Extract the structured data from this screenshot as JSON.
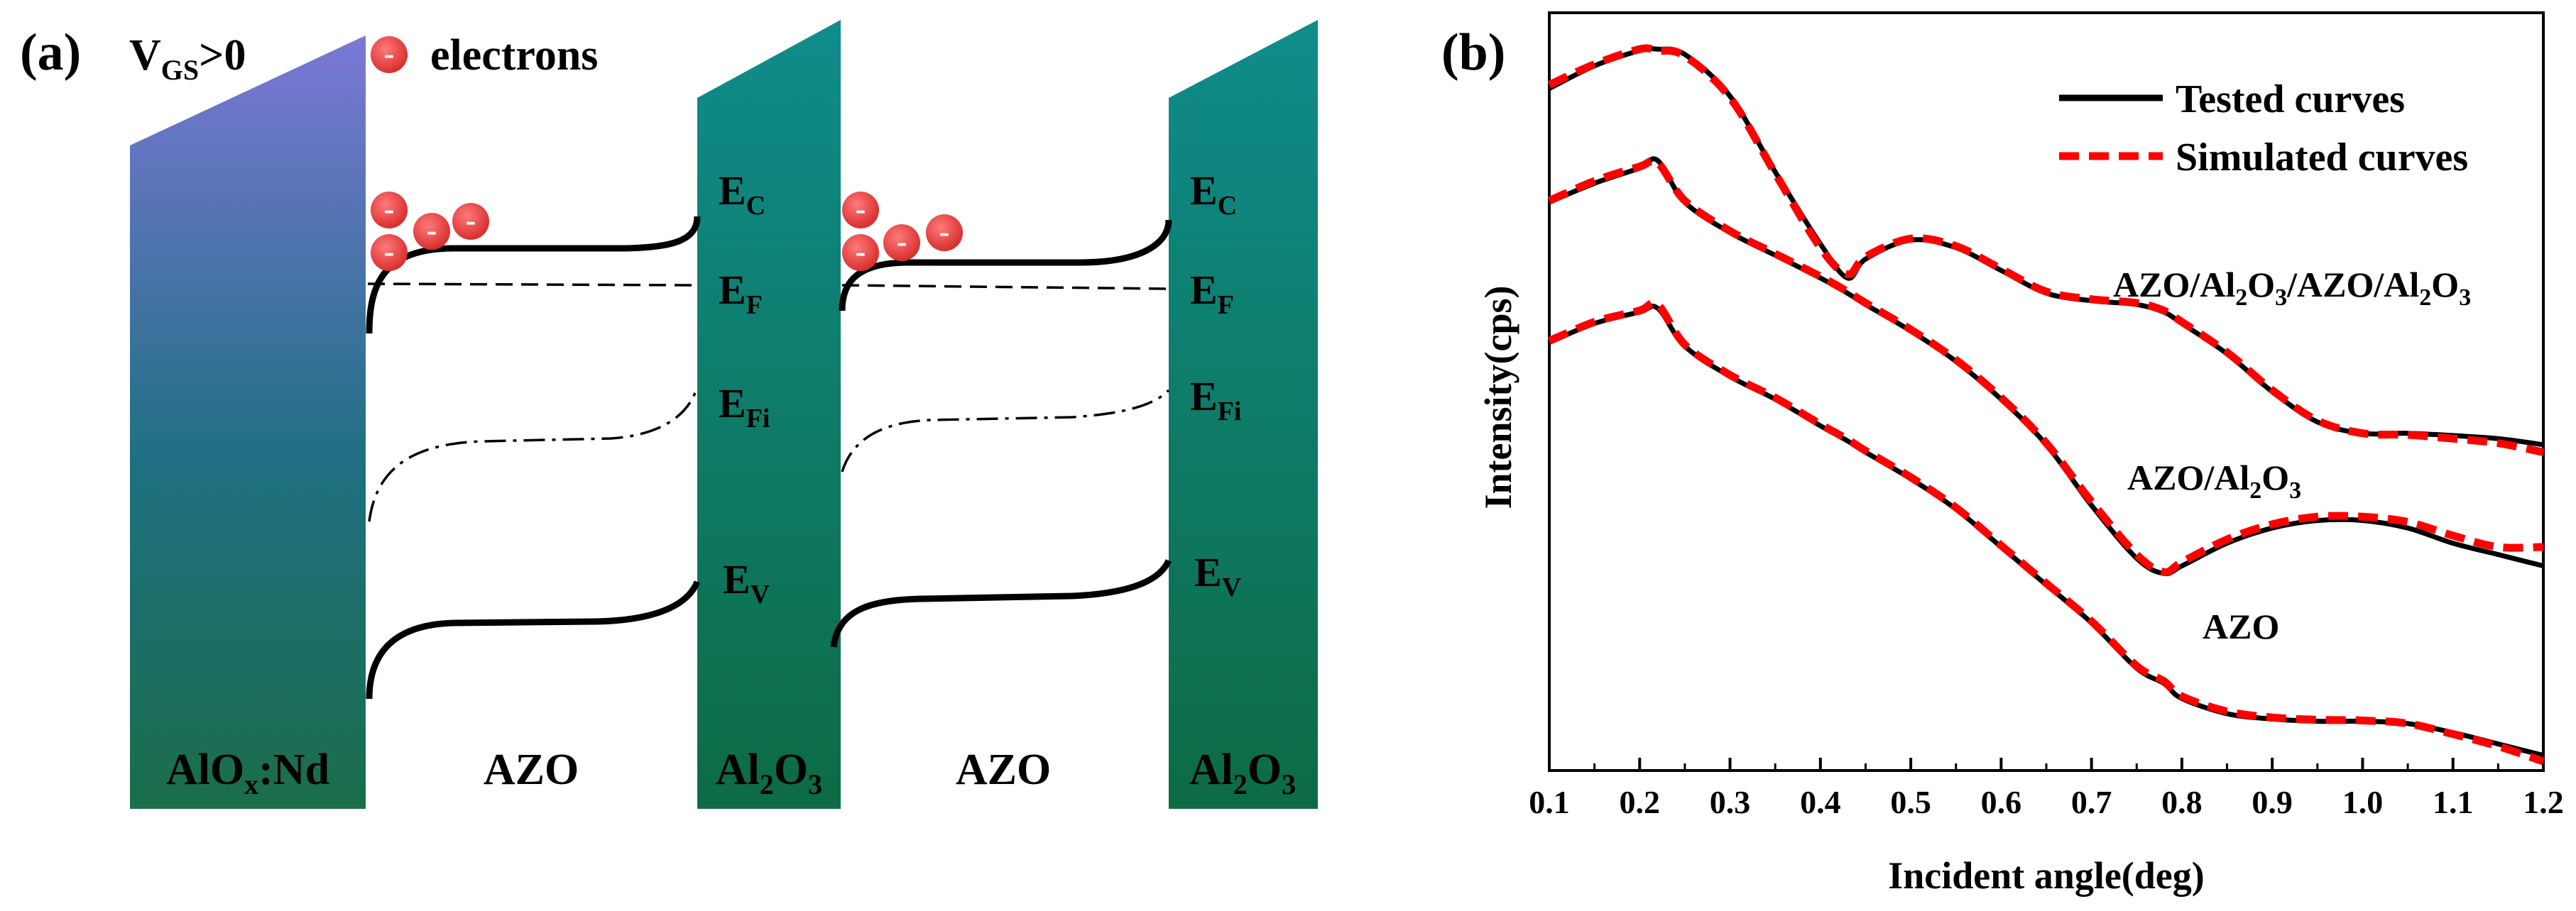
{
  "panel_a": {
    "label": "(a)",
    "bias": {
      "main": "V",
      "sub": "GS",
      "rest": ">0"
    },
    "legend_label": "electrons",
    "electron_symbol": "-",
    "layers": [
      {
        "main": "AlO",
        "sub": "x",
        "rest": ":Nd"
      },
      {
        "main": "AZO",
        "sub": "",
        "rest": ""
      },
      {
        "main": "Al",
        "sub": "2",
        "main2": "O",
        "sub2": "3"
      },
      {
        "main": "AZO",
        "sub": "",
        "rest": ""
      },
      {
        "main": "Al",
        "sub": "2",
        "main2": "O",
        "sub2": "3"
      }
    ],
    "levels": [
      {
        "main": "E",
        "sub": "C"
      },
      {
        "main": "E",
        "sub": "F"
      },
      {
        "main": "E",
        "sub": "Fi"
      },
      {
        "main": "E",
        "sub": "V"
      }
    ],
    "colors": {
      "gate_top": "#7b78d6",
      "gate_bottom": "#1a6e4a",
      "barrier_top": "#0f8c8c",
      "barrier_bottom": "#0d6b45",
      "electron": "#e33b3b"
    }
  },
  "panel_b": {
    "label": "(b)",
    "legend": {
      "tested": "Tested curves",
      "simulated": "Simulated curves"
    },
    "curve_labels": {
      "top": {
        "p1": "AZO/Al",
        "s1": "2",
        "p2": "O",
        "s2": "3",
        "p3": "/AZO/Al",
        "s3": "2",
        "p4": "O",
        "s4": "3"
      },
      "middle": {
        "p1": "AZO/Al",
        "s1": "2",
        "p2": "O",
        "s2": "3"
      },
      "bottom": {
        "p1": "AZO"
      }
    },
    "colors": {
      "tested": "#000000",
      "simulated": "#ff0000"
    }
  },
  "chart_data": {
    "type": "line",
    "title": "",
    "xlabel": "Incident angle(deg)",
    "ylabel": "Intensity(cps)",
    "xlim": [
      0.1,
      1.2
    ],
    "ylim": [
      0,
      10
    ],
    "y_ticks_shown": false,
    "x_ticks": [
      0.1,
      0.2,
      0.3,
      0.4,
      0.5,
      0.6,
      0.7,
      0.8,
      0.9,
      1.0,
      1.1,
      1.2
    ],
    "x_tick_labels": [
      "0.1",
      "0.2",
      "0.3",
      "0.4",
      "0.5",
      "0.6",
      "0.7",
      "0.8",
      "0.9",
      "1.0",
      "1.1",
      "1.2"
    ],
    "x": [
      0.1,
      0.15,
      0.2,
      0.22,
      0.25,
      0.3,
      0.35,
      0.4,
      0.43,
      0.45,
      0.5,
      0.55,
      0.6,
      0.65,
      0.7,
      0.75,
      0.78,
      0.8,
      0.85,
      0.9,
      0.95,
      1.0,
      1.05,
      1.1,
      1.15,
      1.2
    ],
    "series": [
      {
        "name": "AZO/Al2O3/AZO/Al2O3 (tested)",
        "legend": "Tested curves",
        "style": "solid",
        "values": [
          9.0,
          9.3,
          9.5,
          9.52,
          9.45,
          8.9,
          7.9,
          6.95,
          6.5,
          6.75,
          7.0,
          6.9,
          6.6,
          6.3,
          6.2,
          6.15,
          6.05,
          5.9,
          5.5,
          5.0,
          4.6,
          4.45,
          4.45,
          4.42,
          4.38,
          4.3
        ]
      },
      {
        "name": "AZO/Al2O3/AZO/Al2O3 (simulated)",
        "legend": "Simulated curves",
        "style": "dashed",
        "values": [
          9.05,
          9.32,
          9.52,
          9.5,
          9.43,
          8.88,
          7.88,
          6.9,
          6.55,
          6.78,
          7.02,
          6.92,
          6.62,
          6.32,
          6.22,
          6.17,
          6.07,
          5.92,
          5.52,
          5.02,
          4.62,
          4.45,
          4.43,
          4.38,
          4.32,
          4.2
        ]
      },
      {
        "name": "AZO/Al2O3 (tested)",
        "legend": "Tested curves",
        "style": "solid",
        "values": [
          7.5,
          7.75,
          7.95,
          8.05,
          7.5,
          7.1,
          6.8,
          6.5,
          6.3,
          6.15,
          5.8,
          5.4,
          4.9,
          4.3,
          3.5,
          2.8,
          2.6,
          2.7,
          3.0,
          3.2,
          3.3,
          3.3,
          3.2,
          3.0,
          2.85,
          2.7
        ]
      },
      {
        "name": "AZO/Al2O3 (simulated)",
        "legend": "Simulated curves",
        "style": "dashed",
        "values": [
          7.52,
          7.78,
          7.97,
          8.02,
          7.52,
          7.12,
          6.82,
          6.52,
          6.32,
          6.17,
          5.82,
          5.42,
          4.92,
          4.32,
          3.55,
          2.85,
          2.62,
          2.75,
          3.05,
          3.25,
          3.35,
          3.35,
          3.28,
          3.1,
          2.95,
          2.95
        ]
      },
      {
        "name": "AZO (tested)",
        "legend": "Tested curves",
        "style": "solid",
        "values": [
          5.65,
          5.9,
          6.05,
          6.1,
          5.6,
          5.2,
          4.9,
          4.55,
          4.35,
          4.2,
          3.85,
          3.45,
          2.95,
          2.45,
          1.95,
          1.35,
          1.15,
          0.95,
          0.75,
          0.68,
          0.65,
          0.65,
          0.62,
          0.5,
          0.35,
          0.2
        ]
      },
      {
        "name": "AZO (simulated)",
        "legend": "Simulated curves",
        "style": "dashed",
        "values": [
          5.67,
          5.92,
          6.07,
          6.15,
          5.62,
          5.22,
          4.92,
          4.57,
          4.37,
          4.22,
          3.87,
          3.47,
          2.97,
          2.47,
          1.97,
          1.38,
          1.18,
          0.98,
          0.78,
          0.7,
          0.67,
          0.66,
          0.62,
          0.48,
          0.32,
          0.12
        ]
      }
    ]
  }
}
